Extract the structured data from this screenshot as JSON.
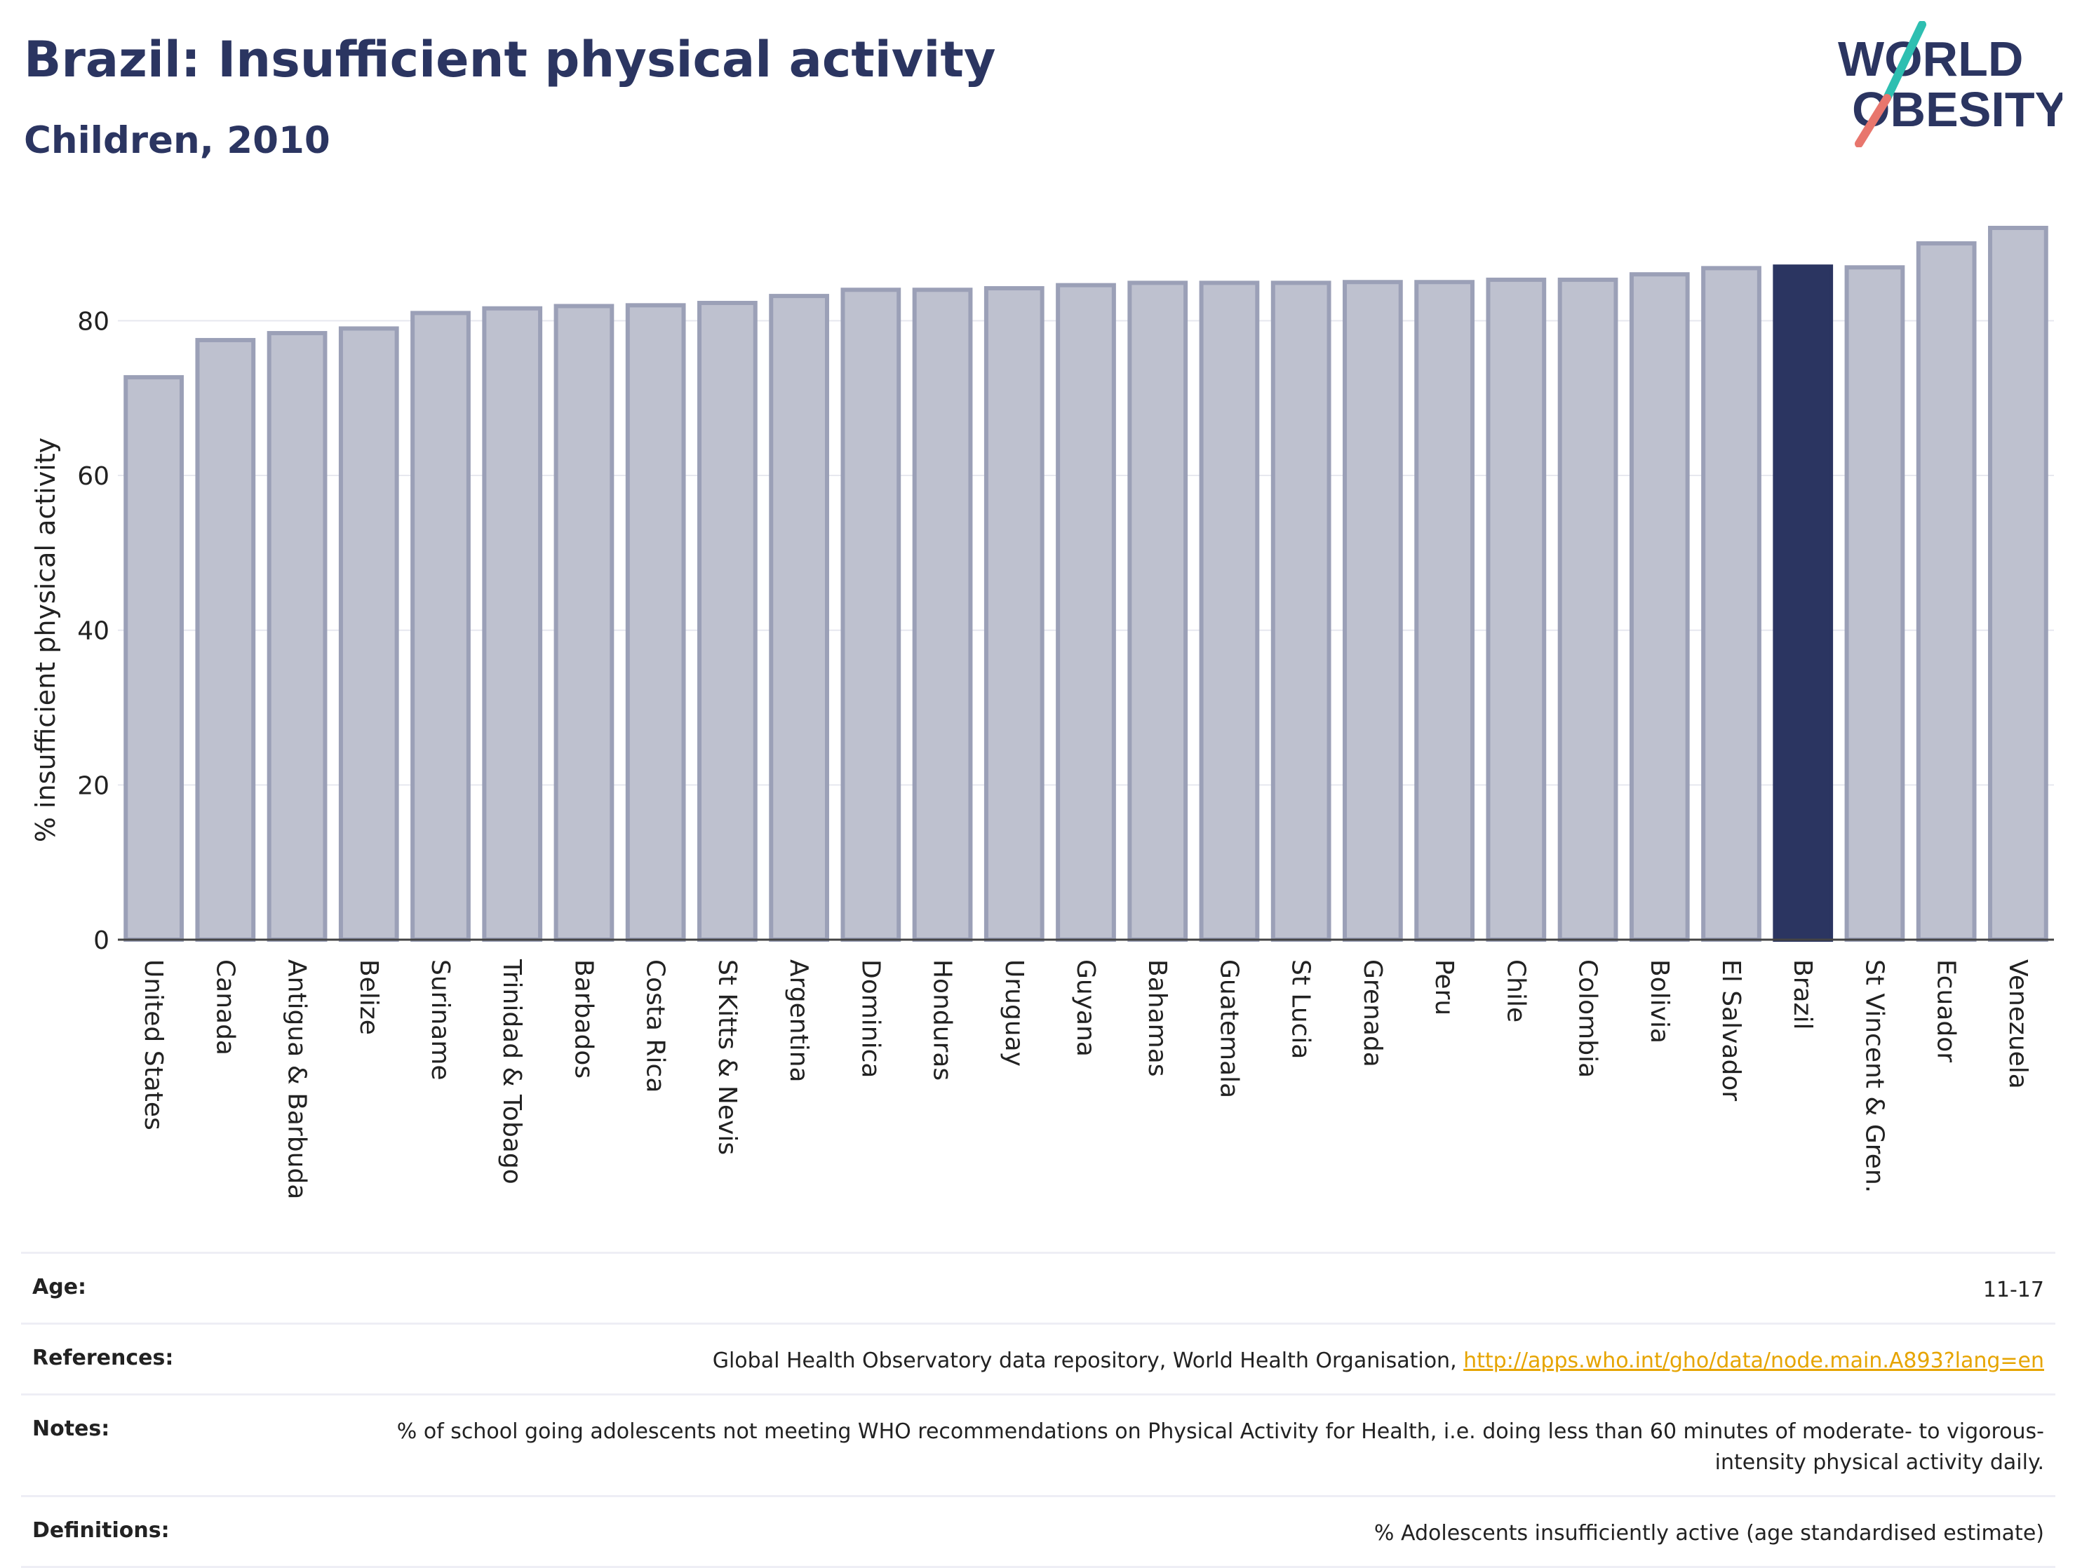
{
  "header": {
    "title": "Brazil: Insufficient physical activity",
    "subtitle": "Children, 2010"
  },
  "logo": {
    "line1": "WORLD",
    "line2": "OBESITY"
  },
  "colors": {
    "highlight": "#2b3561",
    "bar_fill": "#bec1cf",
    "bar_stroke": "#9ba0b7",
    "accent_teal": "#2ebfb1",
    "accent_coral": "#e8766d",
    "link": "#e6a400"
  },
  "chart_data": {
    "type": "bar",
    "ylabel": "% insufficient physical activity",
    "ylim": [
      0,
      92
    ],
    "yticks": [
      0,
      20,
      40,
      60,
      80
    ],
    "grid": true,
    "highlight": "Brazil",
    "categories": [
      "United States",
      "Canada",
      "Antigua & Barbuda",
      "Belize",
      "Suriname",
      "Trinidad & Tobago",
      "Barbados",
      "Costa Rica",
      "St Kitts & Nevis",
      "Argentina",
      "Dominica",
      "Honduras",
      "Uruguay",
      "Guyana",
      "Bahamas",
      "Guatemala",
      "St Lucia",
      "Grenada",
      "Peru",
      "Chile",
      "Colombia",
      "Bolivia",
      "El Salvador",
      "Brazil",
      "St Vincent & Gren.",
      "Ecuador",
      "Venezuela"
    ],
    "values": [
      72.7,
      77.5,
      78.4,
      79.0,
      81.0,
      81.6,
      81.9,
      82.0,
      82.3,
      83.2,
      84.0,
      84.0,
      84.2,
      84.6,
      84.9,
      84.9,
      84.9,
      85.0,
      85.0,
      85.3,
      85.3,
      86.0,
      86.8,
      87.0,
      86.9,
      90.0,
      92.0
    ]
  },
  "footer": {
    "rows": [
      {
        "label": "Age:",
        "value": "11-17"
      },
      {
        "label": "References:",
        "value": "Global Health Observatory data repository, World Health Organisation, ",
        "link": "http://apps.who.int/gho/data/node.main.A893?lang=en"
      },
      {
        "label": "Notes:",
        "value": "% of school going adolescents not meeting WHO recommendations on Physical Activity for Health, i.e. doing less than 60 minutes of moderate- to vigorous-intensity physical activity daily."
      },
      {
        "label": "Definitions:",
        "value": "% Adolescents insufficiently active (age standardised estimate)"
      }
    ]
  }
}
